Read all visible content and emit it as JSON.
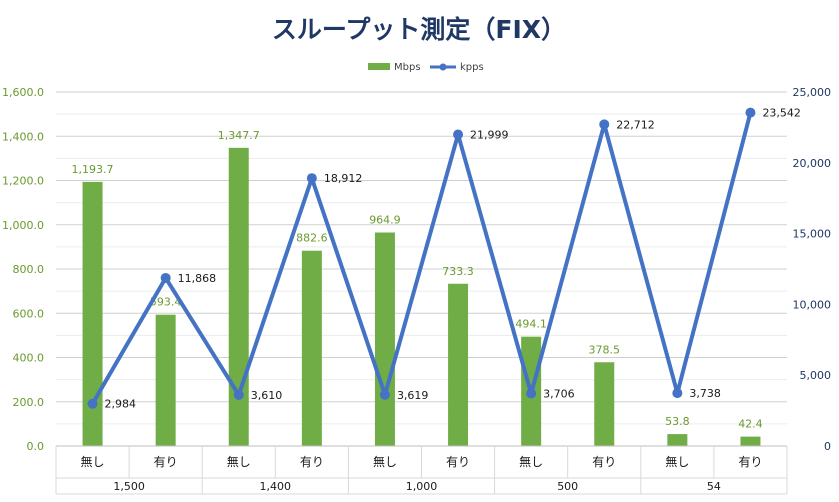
{
  "chart_data": {
    "type": "bar+line",
    "title": "スループット測定（FIX）",
    "legend": [
      {
        "name": "Mbps",
        "kind": "bar",
        "color": "#70ad47"
      },
      {
        "name": "kpps",
        "kind": "line",
        "color": "#4472c4"
      }
    ],
    "legend_position": "top",
    "categories": [
      "無し",
      "有り",
      "無し",
      "有り",
      "無し",
      "有り",
      "無し",
      "有り",
      "無し",
      "有り"
    ],
    "groups": [
      "1,500",
      "1,400",
      "1,000",
      "500",
      "54"
    ],
    "series": [
      {
        "name": "Mbps",
        "type": "bar",
        "axis": "left",
        "values": [
          1193.7,
          593.4,
          1347.7,
          882.6,
          964.9,
          733.3,
          494.1,
          378.5,
          53.8,
          42.4
        ],
        "labels": [
          "1,193.7",
          "593.4",
          "1,347.7",
          "882.6",
          "964.9",
          "733.3",
          "494.1",
          "378.5",
          "53.8",
          "42.4"
        ]
      },
      {
        "name": "kpps",
        "type": "line",
        "axis": "right",
        "values": [
          2984,
          11868,
          3610,
          18912,
          3619,
          21999,
          3706,
          22712,
          3738,
          23542
        ],
        "labels": [
          "2,984",
          "11,868",
          "3,610",
          "18,912",
          "3,619",
          "21,999",
          "3,706",
          "22,712",
          "3,738",
          "23,542"
        ]
      }
    ],
    "y_left": {
      "min": 0,
      "max": 1600,
      "ticks": [
        "0.0",
        "200.0",
        "400.0",
        "600.0",
        "800.0",
        "1,000.0",
        "1,200.0",
        "1,400.0",
        "1,600.0"
      ]
    },
    "y_right": {
      "min": 0,
      "max": 25000,
      "ticks": [
        "0",
        "5,000",
        "10,000",
        "15,000",
        "20,000",
        "25,000"
      ]
    },
    "grid": true,
    "colors": {
      "bar": "#70ad47",
      "line": "#4472c4",
      "title": "#1f3864",
      "left_axis_text": "#6a9a2e",
      "right_axis_text": "#1f3864",
      "grid": "#d9d9d9"
    }
  }
}
